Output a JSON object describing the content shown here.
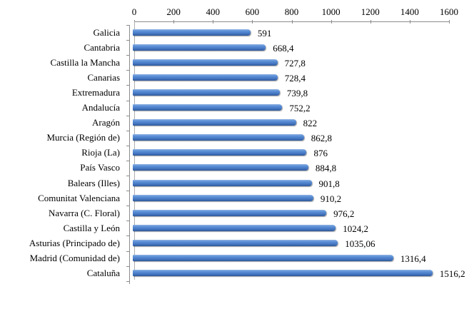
{
  "chart_data": {
    "type": "bar",
    "orientation": "horizontal",
    "title": "",
    "xlabel": "",
    "ylabel": "",
    "xlim": [
      0,
      1600
    ],
    "x_ticks": [
      "0",
      "200",
      "400",
      "600",
      "800",
      "1000",
      "1200",
      "1400",
      "1600"
    ],
    "x_axis_position": "top",
    "grid": false,
    "legend": null,
    "bar_color": "#4a7cc7",
    "categories": [
      "Galicia",
      "Cantabria",
      "Castilla la Mancha",
      "Canarias",
      "Extremadura",
      "Andalucía",
      "Aragón",
      "Murcia (Región de)",
      "Rioja (La)",
      "País Vasco",
      "Balears (Illes)",
      "Comunitat Valenciana",
      "Navarra (C. Floral)",
      "Castilla y León",
      "Asturias (Principado de)",
      "Madrid (Comunidad de)",
      "Cataluña"
    ],
    "values": [
      591,
      668.4,
      727.8,
      728.4,
      739.8,
      752.2,
      822,
      862.8,
      876,
      884.8,
      901.8,
      910.2,
      976.2,
      1024.2,
      1035.06,
      1316.4,
      1516.2
    ],
    "value_labels": [
      "591",
      "668,4",
      "727,8",
      "728,4",
      "739,8",
      "752,2",
      "822",
      "862,8",
      "876",
      "884,8",
      "901,8",
      "910,2",
      "976,2",
      "1024,2",
      "1035,06",
      "1316,4",
      "1516,2"
    ]
  }
}
